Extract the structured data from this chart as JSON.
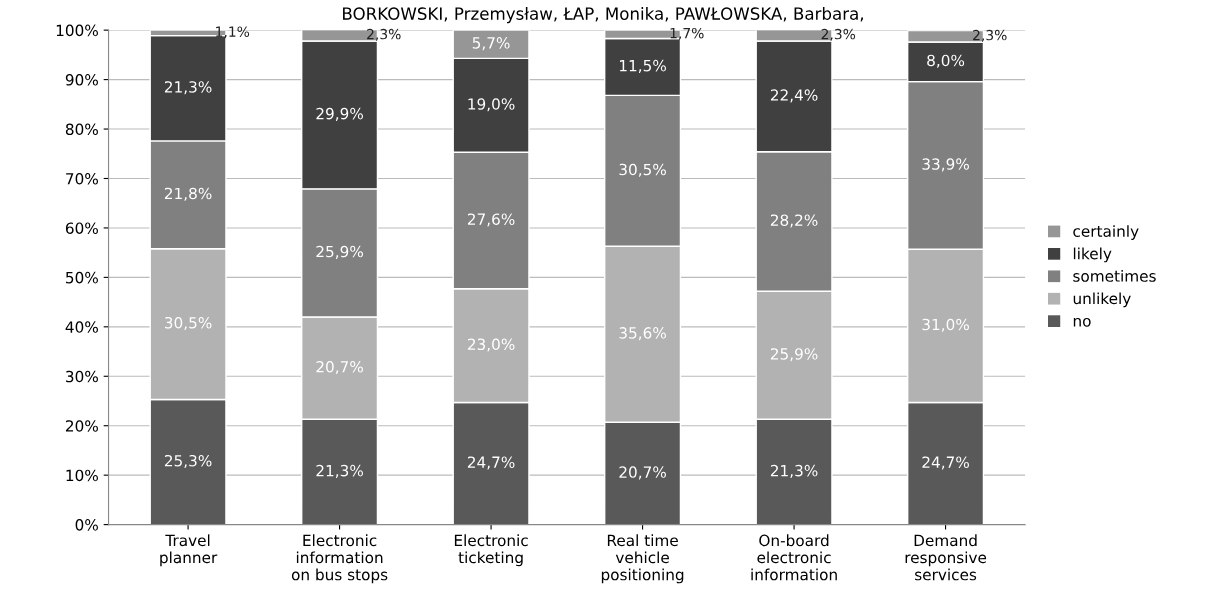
{
  "chart_data": {
    "type": "bar",
    "stacked": true,
    "title": "BORKOWSKI, Przemysław, ŁAP, Monika, PAWŁOWSKA, Barbara,",
    "categories": [
      "Travel\nplanner",
      "Electronic\ninformation\non bus stops",
      "Electronic\nticketing",
      "Real time\nvehicle\npositioning",
      "On-board\nelectronic\ninformation",
      "Demand\nresponsive\nservices"
    ],
    "series": [
      {
        "name": "no",
        "color": "#595959",
        "values": [
          25.3,
          21.3,
          24.7,
          20.7,
          21.3,
          24.7
        ],
        "value_labels": [
          "25,3%",
          "21,3%",
          "24,7%",
          "20,7%",
          "21,3%",
          "24,7%"
        ]
      },
      {
        "name": "unlikely",
        "color": "#b2b2b2",
        "values": [
          30.5,
          20.7,
          23.0,
          35.6,
          25.9,
          31.0
        ],
        "value_labels": [
          "30,5%",
          "20,7%",
          "23,0%",
          "35,6%",
          "25,9%",
          "31,0%"
        ]
      },
      {
        "name": "sometimes",
        "color": "#808080",
        "values": [
          21.8,
          25.9,
          27.6,
          30.5,
          28.2,
          33.9
        ],
        "value_labels": [
          "21,8%",
          "25,9%",
          "27,6%",
          "30,5%",
          "28,2%",
          "33,9%"
        ]
      },
      {
        "name": "likely",
        "color": "#404040",
        "values": [
          21.3,
          29.9,
          19.0,
          11.5,
          22.4,
          8.0
        ],
        "value_labels": [
          "21,3%",
          "29,9%",
          "19,0%",
          "11,5%",
          "22,4%",
          "8,0%"
        ]
      },
      {
        "name": "certainly",
        "color": "#969696",
        "values": [
          1.1,
          2.3,
          5.7,
          1.7,
          2.3,
          2.3
        ],
        "value_labels": [
          "1,1%",
          "2,3%",
          "5,7%",
          "1,7%",
          "2,3%",
          "2,3%"
        ]
      }
    ],
    "ylim": [
      0,
      100
    ],
    "yticks": [
      {
        "value": 0,
        "label": "0%"
      },
      {
        "value": 10,
        "label": "10%"
      },
      {
        "value": 20,
        "label": "20%"
      },
      {
        "value": 30,
        "label": "30%"
      },
      {
        "value": 40,
        "label": "40%"
      },
      {
        "value": 50,
        "label": "50%"
      },
      {
        "value": 60,
        "label": "60%"
      },
      {
        "value": 70,
        "label": "70%"
      },
      {
        "value": 80,
        "label": "80%"
      },
      {
        "value": 90,
        "label": "90%"
      },
      {
        "value": 100,
        "label": "100%"
      }
    ],
    "grid": "y",
    "legend": "right"
  }
}
